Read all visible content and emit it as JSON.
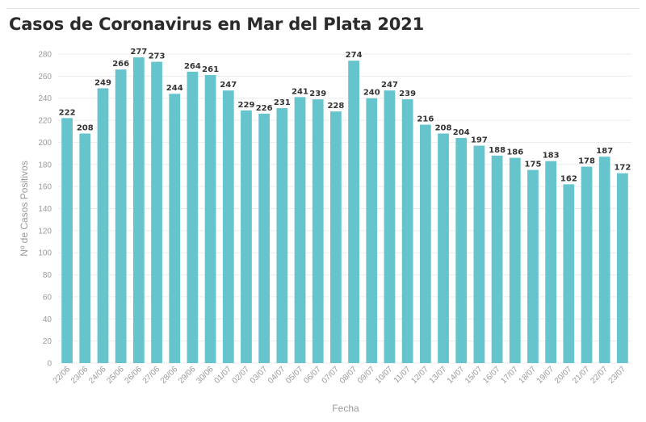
{
  "title": "Casos de Coronavirus en Mar del Plata 2021",
  "colors": {
    "bar": "#66c4cc",
    "grid": "#ececec",
    "text": "#333333",
    "axis_text": "#9a9a9a"
  },
  "chart_data": {
    "type": "bar",
    "title": "Casos de Coronavirus en Mar del Plata 2021",
    "xlabel": "Fecha",
    "ylabel": "Nº de Casos Positivos",
    "ylim": [
      0,
      280
    ],
    "yticks": [
      0,
      20,
      40,
      60,
      80,
      100,
      120,
      140,
      160,
      180,
      200,
      220,
      240,
      260,
      280
    ],
    "grid": "horizontal",
    "categories": [
      "22/06",
      "23/06",
      "24/06",
      "25/06",
      "26/06",
      "27/06",
      "28/06",
      "29/06",
      "30/06",
      "01/07",
      "02/07",
      "03/07",
      "04/07",
      "05/07",
      "06/07",
      "07/07",
      "08/07",
      "09/07",
      "10/07",
      "11/07",
      "12/07",
      "13/07",
      "14/07",
      "15/07",
      "16/07",
      "17/07",
      "18/07",
      "19/07",
      "20/07",
      "21/07",
      "22/07",
      "23/07"
    ],
    "values": [
      222,
      208,
      249,
      266,
      277,
      273,
      244,
      264,
      261,
      247,
      229,
      226,
      231,
      241,
      239,
      228,
      274,
      240,
      247,
      239,
      216,
      208,
      204,
      197,
      188,
      186,
      175,
      183,
      162,
      178,
      187,
      172
    ]
  }
}
